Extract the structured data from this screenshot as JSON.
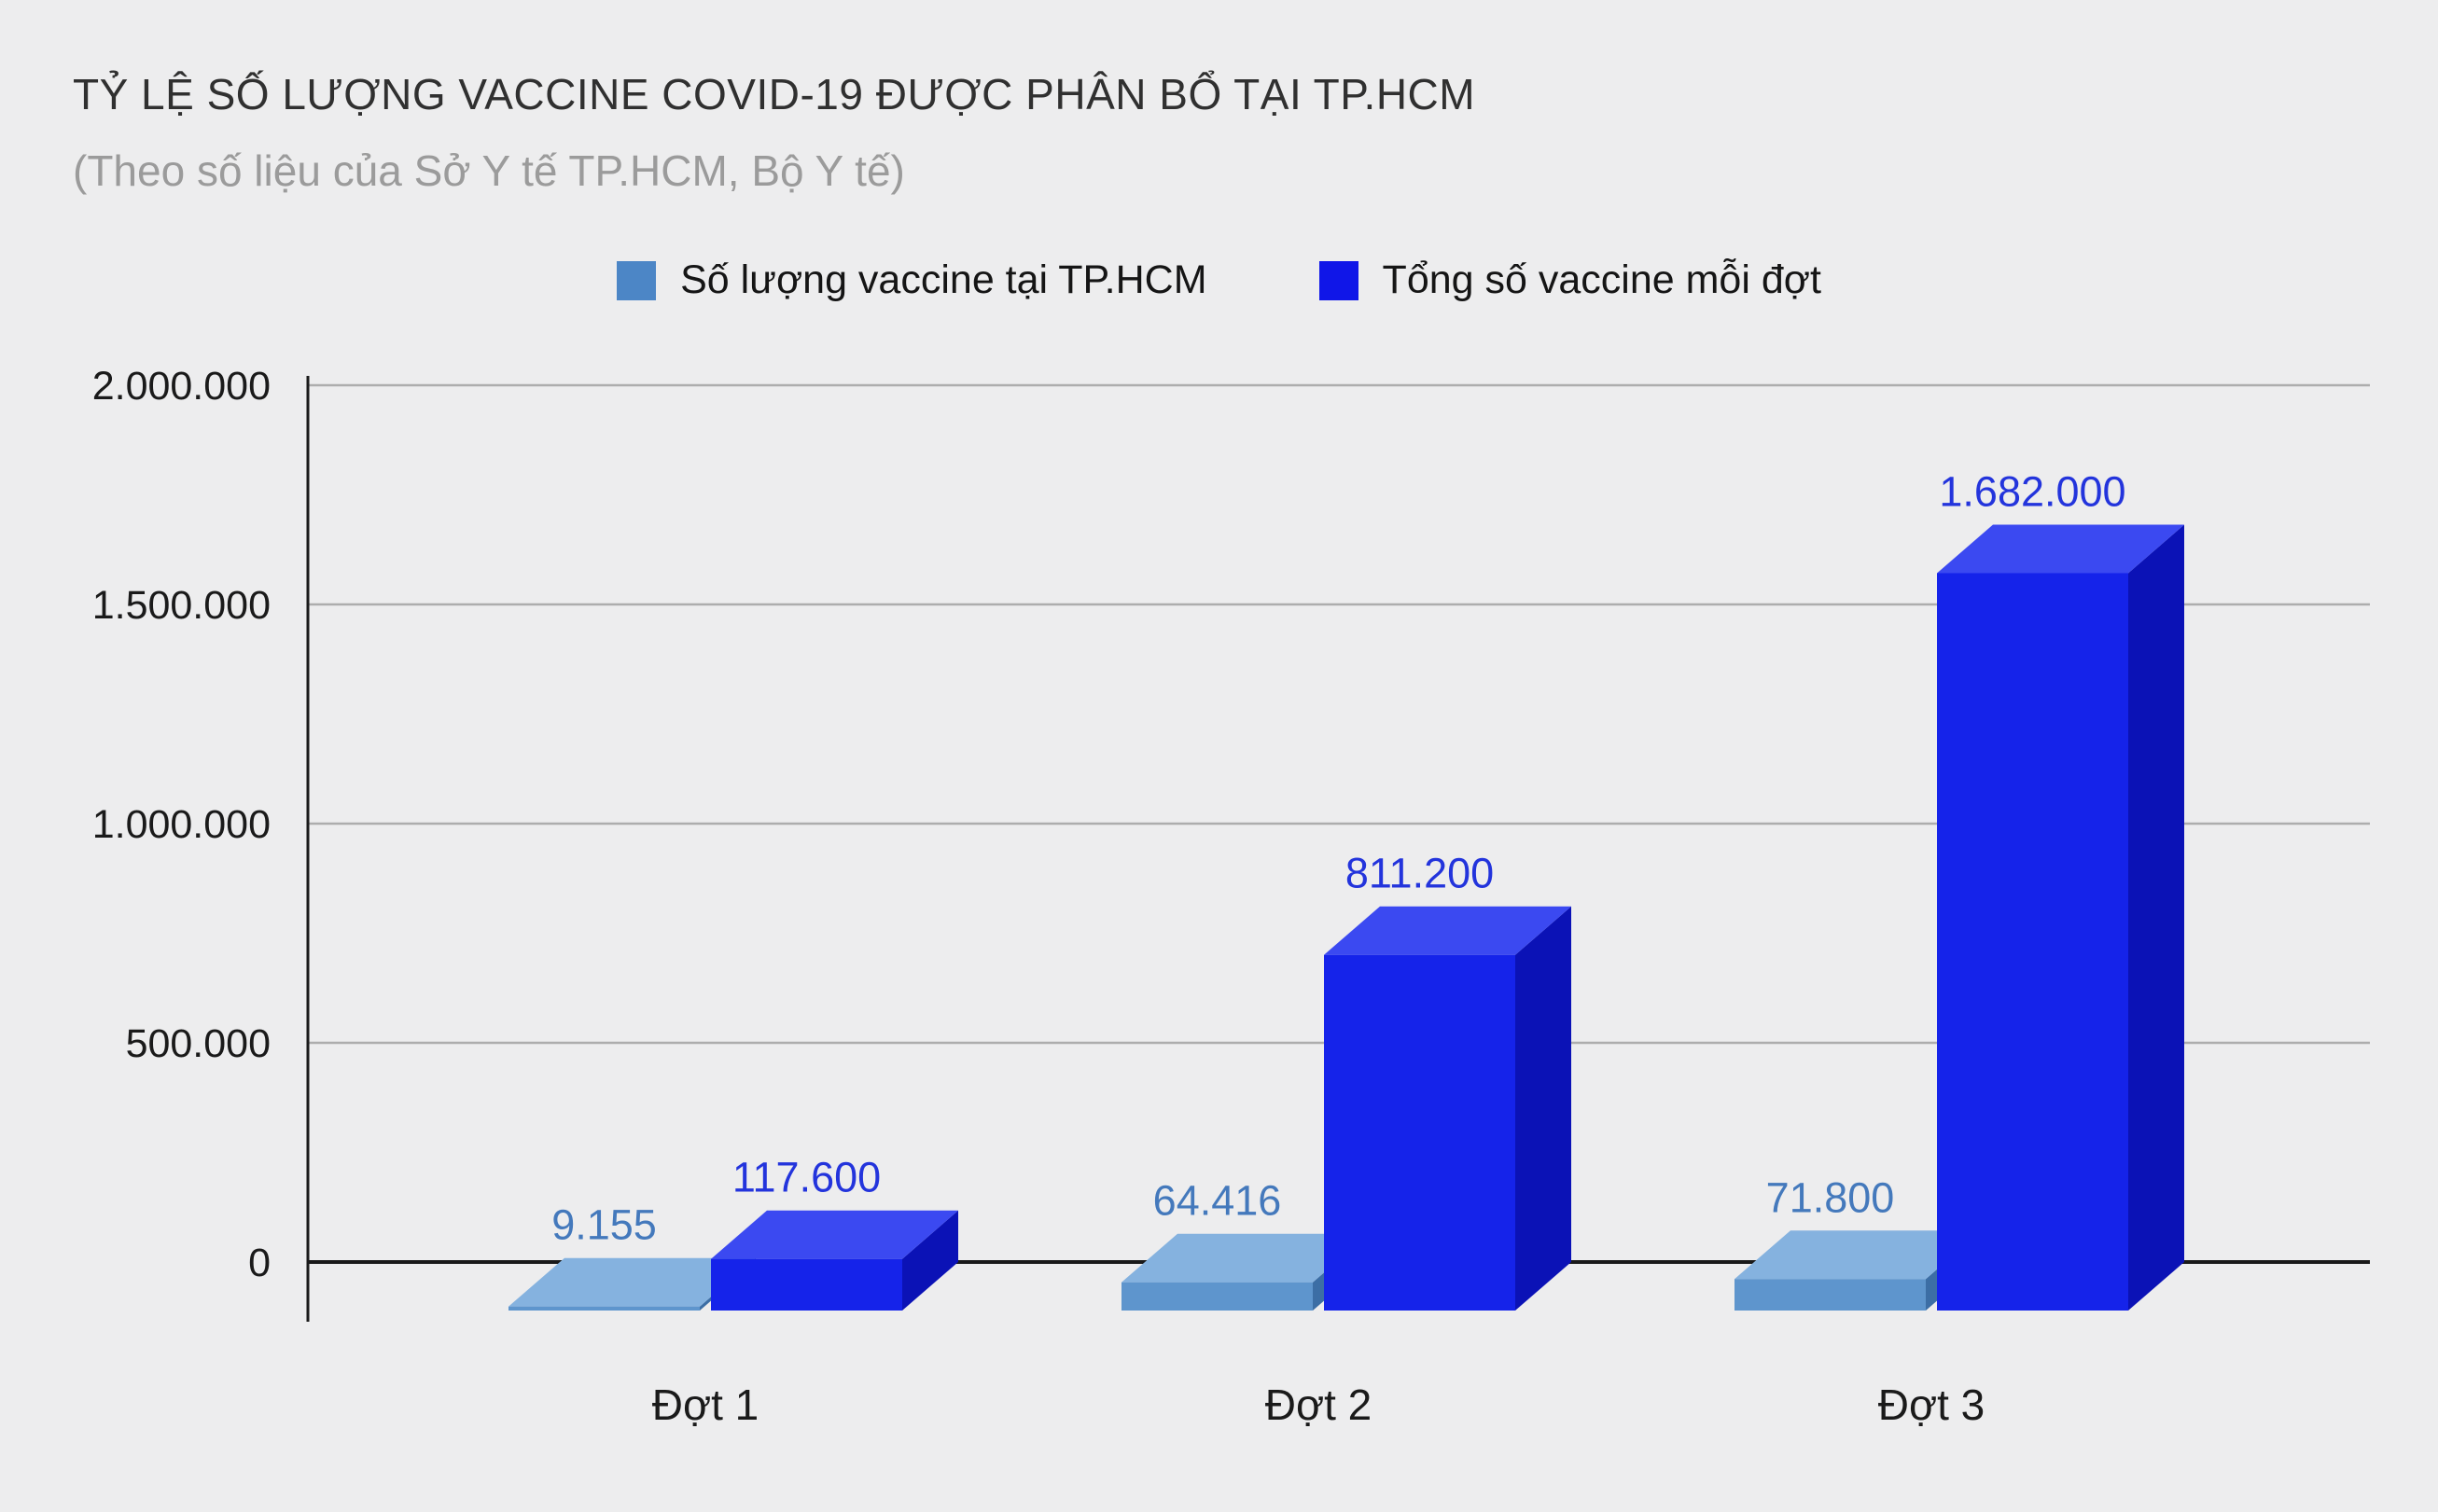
{
  "chart_data": {
    "type": "bar",
    "variant": "3d-grouped-column",
    "title": "TỶ LỆ SỐ LƯỢNG VACCINE COVID-19 ĐƯỢC PHÂN BỔ TẠI TP.HCM",
    "subtitle": "(Theo số liệu của Sở Y tế TP.HCM, Bộ Y tế)",
    "categories": [
      "Đợt 1",
      "Đợt 2",
      "Đợt 3"
    ],
    "series": [
      {
        "name": "Số lượng vaccine tại TP.HCM",
        "values": [
          9155,
          64416,
          71800
        ],
        "value_labels": [
          "9.155",
          "64.416",
          "71.800"
        ],
        "color": "#4C86C6",
        "color_front": "#5E95CD",
        "color_top": "#85B2DF",
        "color_side": "#3C6EA5",
        "label_color": "#4479BC"
      },
      {
        "name": "Tổng số vaccine mỗi đợt",
        "values": [
          117600,
          811200,
          1682000
        ],
        "value_labels": [
          "117.600",
          "811.200",
          "1.682.000"
        ],
        "color": "#1016E8",
        "color_front": "#1523EA",
        "color_top": "#3B49F1",
        "color_side": "#0B12B6",
        "label_color": "#2334DC"
      }
    ],
    "y_axis": {
      "min": 0,
      "max": 2000000,
      "tick_interval": 500000,
      "tick_labels": [
        "0",
        "500.000",
        "1.000.000",
        "1.500.000",
        "2.000.000"
      ]
    },
    "legend_position": "top",
    "grid": true
  },
  "colors": {
    "background": "#EDEDEE",
    "grid": "#ADADAD",
    "axis": "#1A1A1A",
    "tick_text": "#1A1A1A",
    "category_text": "#1A1A1A",
    "title_text": "#303030",
    "subtitle_text": "#9B9B9B"
  }
}
